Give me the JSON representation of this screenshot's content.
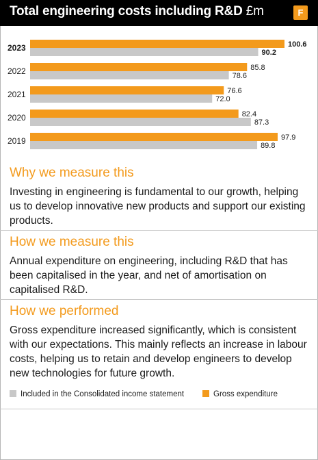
{
  "header": {
    "title": "Total engineering costs including R&D",
    "unit": "£m",
    "badge": "F"
  },
  "colors": {
    "gross": "#f39a1c",
    "income": "#c8c8c8",
    "accent": "#f39a1c"
  },
  "chart_data": {
    "type": "bar",
    "orientation": "horizontal",
    "categories": [
      "2023",
      "2022",
      "2021",
      "2020",
      "2019"
    ],
    "highlight_category": "2023",
    "series": [
      {
        "name": "Gross expenditure",
        "color": "#f39a1c",
        "values": [
          100.6,
          85.8,
          76.6,
          82.4,
          97.9
        ]
      },
      {
        "name": "Included in the Consolidated income statement",
        "color": "#c8c8c8",
        "values": [
          90.2,
          78.6,
          72.0,
          87.3,
          89.8
        ]
      }
    ],
    "value_labels": [
      [
        "100.6",
        "85.8",
        "76.6",
        "82.4",
        "97.9"
      ],
      [
        "90.2",
        "78.6",
        "72.0",
        "87.3",
        "89.8"
      ]
    ],
    "xlim": [
      0,
      100.6
    ],
    "grid": false,
    "legend_position": "bottom"
  },
  "sections": [
    {
      "heading": "Why we measure this",
      "body": "Investing in engineering is fundamental to our growth, helping us to develop innovative new products and support our existing products."
    },
    {
      "heading": "How we measure this",
      "body": "Annual expenditure on engineering, including R&D that has been capitalised in the year, and net of amortisation on capitalised R&D."
    },
    {
      "heading": "How we performed",
      "body": "Gross expenditure increased significantly, which is consistent with our expectations. This mainly reflects an increase in labour costs, helping us to retain and develop engineers to develop new technologies for future growth."
    }
  ],
  "legend": {
    "income_label": "Included in the Consolidated income statement",
    "gross_label": "Gross expenditure"
  }
}
